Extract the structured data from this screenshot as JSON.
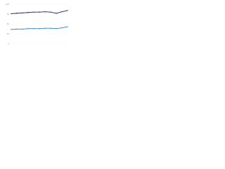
{
  "chart_data": {
    "type": "line",
    "categories": [
      null,
      null,
      null,
      null,
      null,
      null,
      null,
      null,
      null,
      null,
      null
    ],
    "series": [
      {
        "color": "#1f2d4f",
        "values": [
          76,
          77,
          78,
          79,
          80,
          80,
          81,
          80,
          77,
          81,
          84
        ]
      },
      {
        "color": "#2f7ed8",
        "values": [
          36,
          37,
          37,
          38,
          38,
          38,
          39,
          39,
          38,
          40,
          43
        ]
      }
    ],
    "ylim": [
      0,
      100
    ],
    "yticks": [
      0,
      25,
      50,
      75,
      100
    ],
    "grid": true
  }
}
